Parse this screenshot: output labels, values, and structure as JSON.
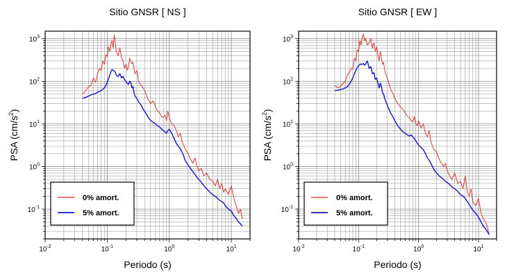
{
  "chart_data": [
    {
      "type": "line",
      "title": "Sitio GNSR [ NS ]",
      "xlabel": "Periodo (s)",
      "ylabel": "PSA (cm/s",
      "ylabel_sup": "2",
      "ylabel_close": ")",
      "xscale": "log",
      "yscale": "log",
      "xlim": [
        0.01,
        20
      ],
      "ylim": [
        0.02,
        1500
      ],
      "grid": true,
      "legend_position": "bottom-left",
      "x_ticks": [
        {
          "value": 0.01,
          "base": "10",
          "exp": "-2"
        },
        {
          "value": 0.1,
          "base": "10",
          "exp": "-1"
        },
        {
          "value": 1,
          "base": "10",
          "exp": "0"
        },
        {
          "value": 10,
          "base": "10",
          "exp": "1"
        }
      ],
      "y_ticks": [
        {
          "value": 0.1,
          "base": "10",
          "exp": "-1"
        },
        {
          "value": 1,
          "base": "10",
          "exp": "0"
        },
        {
          "value": 10,
          "base": "10",
          "exp": "1"
        },
        {
          "value": 100,
          "base": "10",
          "exp": "2"
        },
        {
          "value": 1000,
          "base": "10",
          "exp": "3"
        }
      ],
      "series": [
        {
          "name": "0% amort.",
          "color": "#ee2222",
          "x": [
            0.04,
            0.045,
            0.05,
            0.055,
            0.06,
            0.065,
            0.07,
            0.075,
            0.08,
            0.085,
            0.09,
            0.095,
            0.1,
            0.105,
            0.11,
            0.115,
            0.12,
            0.125,
            0.13,
            0.135,
            0.14,
            0.15,
            0.16,
            0.17,
            0.18,
            0.19,
            0.2,
            0.21,
            0.22,
            0.23,
            0.24,
            0.25,
            0.26,
            0.27,
            0.28,
            0.3,
            0.32,
            0.35,
            0.38,
            0.4,
            0.45,
            0.5,
            0.55,
            0.6,
            0.65,
            0.7,
            0.75,
            0.8,
            0.85,
            0.9,
            0.95,
            1.0,
            1.1,
            1.2,
            1.3,
            1.4,
            1.5,
            1.6,
            1.7,
            1.8,
            2.0,
            2.2,
            2.4,
            2.6,
            2.8,
            3.0,
            3.3,
            3.6,
            4.0,
            4.5,
            5.0,
            5.5,
            6.0,
            6.5,
            7.0,
            7.5,
            8.0,
            9.0,
            10.0,
            11.0,
            12.0,
            13.0,
            14.0,
            15.0
          ],
          "values": [
            50,
            60,
            75,
            80,
            120,
            95,
            150,
            200,
            180,
            300,
            250,
            420,
            380,
            650,
            500,
            750,
            900,
            600,
            1200,
            800,
            500,
            400,
            600,
            350,
            300,
            200,
            250,
            180,
            220,
            350,
            300,
            260,
            280,
            200,
            150,
            180,
            100,
            80,
            70,
            60,
            40,
            30,
            35,
            25,
            20,
            18,
            15,
            14,
            16,
            12,
            20,
            14,
            10,
            9,
            7,
            5,
            6,
            4,
            3.2,
            2.6,
            2.0,
            1.5,
            1.2,
            1.6,
            1.0,
            0.8,
            0.9,
            0.6,
            0.7,
            0.5,
            0.45,
            0.35,
            0.5,
            0.3,
            0.4,
            0.25,
            0.3,
            0.22,
            0.35,
            0.18,
            0.12,
            0.08,
            0.1,
            0.06
          ]
        },
        {
          "name": "5% amort.",
          "color": "#1111dd",
          "x": [
            0.04,
            0.045,
            0.05,
            0.055,
            0.06,
            0.065,
            0.07,
            0.075,
            0.08,
            0.085,
            0.09,
            0.095,
            0.1,
            0.105,
            0.11,
            0.115,
            0.12,
            0.125,
            0.13,
            0.135,
            0.14,
            0.15,
            0.16,
            0.17,
            0.18,
            0.19,
            0.2,
            0.21,
            0.22,
            0.23,
            0.24,
            0.25,
            0.26,
            0.27,
            0.28,
            0.3,
            0.32,
            0.35,
            0.38,
            0.4,
            0.45,
            0.5,
            0.55,
            0.6,
            0.65,
            0.7,
            0.75,
            0.8,
            0.85,
            0.9,
            0.95,
            1.0,
            1.1,
            1.2,
            1.3,
            1.4,
            1.5,
            1.6,
            1.7,
            1.8,
            2.0,
            2.2,
            2.4,
            2.6,
            2.8,
            3.0,
            3.3,
            3.6,
            4.0,
            4.5,
            5.0,
            5.5,
            6.0,
            6.5,
            7.0,
            7.5,
            8.0,
            9.0,
            10.0,
            11.0,
            12.0,
            13.0,
            14.0,
            15.0
          ],
          "values": [
            40,
            42,
            45,
            48,
            50,
            52,
            55,
            58,
            60,
            65,
            70,
            80,
            95,
            115,
            140,
            170,
            190,
            180,
            175,
            165,
            140,
            130,
            150,
            120,
            130,
            110,
            100,
            90,
            85,
            100,
            95,
            70,
            75,
            55,
            45,
            40,
            33,
            28,
            22,
            20,
            15,
            12,
            11,
            10,
            9,
            8.5,
            7.5,
            7,
            6.5,
            6,
            7,
            7.5,
            6,
            4.5,
            3.5,
            3,
            2.6,
            2.2,
            1.8,
            1.4,
            1.1,
            0.9,
            0.75,
            0.65,
            0.55,
            0.5,
            0.42,
            0.36,
            0.3,
            0.25,
            0.22,
            0.2,
            0.18,
            0.16,
            0.15,
            0.14,
            0.12,
            0.1,
            0.09,
            0.07,
            0.06,
            0.05,
            0.045,
            0.04
          ]
        }
      ]
    },
    {
      "type": "line",
      "title": "Sitio GNSR [ EW ]",
      "xlabel": "Periodo (s)",
      "ylabel": "PSA (cm/s",
      "ylabel_sup": "2",
      "ylabel_close": ")",
      "xscale": "log",
      "yscale": "log",
      "xlim": [
        0.01,
        20
      ],
      "ylim": [
        0.02,
        1500
      ],
      "grid": true,
      "legend_position": "bottom-left",
      "x_ticks": [
        {
          "value": 0.01,
          "base": "10",
          "exp": "-2"
        },
        {
          "value": 0.1,
          "base": "10",
          "exp": "-1"
        },
        {
          "value": 1,
          "base": "10",
          "exp": "0"
        },
        {
          "value": 10,
          "base": "10",
          "exp": "1"
        }
      ],
      "y_ticks": [
        {
          "value": 0.1,
          "base": "10",
          "exp": "-1"
        },
        {
          "value": 1,
          "base": "10",
          "exp": "0"
        },
        {
          "value": 10,
          "base": "10",
          "exp": "1"
        },
        {
          "value": 100,
          "base": "10",
          "exp": "2"
        },
        {
          "value": 1000,
          "base": "10",
          "exp": "3"
        }
      ],
      "series": [
        {
          "name": "0% amort.",
          "color": "#ee2222",
          "x": [
            0.04,
            0.045,
            0.05,
            0.055,
            0.06,
            0.065,
            0.07,
            0.075,
            0.08,
            0.085,
            0.09,
            0.095,
            0.1,
            0.105,
            0.11,
            0.115,
            0.12,
            0.125,
            0.13,
            0.135,
            0.14,
            0.15,
            0.16,
            0.17,
            0.18,
            0.19,
            0.2,
            0.21,
            0.22,
            0.23,
            0.24,
            0.25,
            0.26,
            0.27,
            0.28,
            0.3,
            0.32,
            0.35,
            0.38,
            0.4,
            0.45,
            0.5,
            0.55,
            0.6,
            0.65,
            0.7,
            0.75,
            0.8,
            0.85,
            0.9,
            0.95,
            1.0,
            1.1,
            1.2,
            1.3,
            1.4,
            1.5,
            1.6,
            1.7,
            1.8,
            2.0,
            2.2,
            2.4,
            2.6,
            2.8,
            3.0,
            3.3,
            3.6,
            4.0,
            4.5,
            5.0,
            5.5,
            6.0,
            6.5,
            7.0,
            7.5,
            8.0,
            9.0,
            10.0,
            11.0,
            12.0,
            13.0,
            14.0,
            15.0
          ],
          "values": [
            80,
            70,
            75,
            90,
            100,
            140,
            160,
            200,
            190,
            350,
            300,
            550,
            500,
            900,
            700,
            1100,
            1300,
            900,
            1000,
            850,
            700,
            800,
            1000,
            600,
            800,
            500,
            650,
            400,
            300,
            500,
            350,
            250,
            280,
            200,
            150,
            120,
            90,
            60,
            50,
            40,
            30,
            25,
            22,
            18,
            15,
            14,
            12,
            11,
            15,
            10,
            9,
            12,
            8,
            10,
            6,
            5,
            7,
            4,
            3,
            2.5,
            2.2,
            1.5,
            1.2,
            1.0,
            1.2,
            0.8,
            0.6,
            0.5,
            0.7,
            0.4,
            0.45,
            0.3,
            0.6,
            0.25,
            0.2,
            0.3,
            0.15,
            0.12,
            0.18,
            0.08,
            0.06,
            0.05,
            0.04,
            0.025
          ]
        },
        {
          "name": "5% amort.",
          "color": "#1111dd",
          "x": [
            0.04,
            0.045,
            0.05,
            0.055,
            0.06,
            0.065,
            0.07,
            0.075,
            0.08,
            0.085,
            0.09,
            0.095,
            0.1,
            0.105,
            0.11,
            0.115,
            0.12,
            0.125,
            0.13,
            0.135,
            0.14,
            0.15,
            0.16,
            0.17,
            0.18,
            0.19,
            0.2,
            0.21,
            0.22,
            0.23,
            0.24,
            0.25,
            0.26,
            0.27,
            0.28,
            0.3,
            0.32,
            0.35,
            0.38,
            0.4,
            0.45,
            0.5,
            0.55,
            0.6,
            0.65,
            0.7,
            0.75,
            0.8,
            0.85,
            0.9,
            0.95,
            1.0,
            1.1,
            1.2,
            1.3,
            1.4,
            1.5,
            1.6,
            1.7,
            1.8,
            2.0,
            2.2,
            2.4,
            2.6,
            2.8,
            3.0,
            3.3,
            3.6,
            4.0,
            4.5,
            5.0,
            5.5,
            6.0,
            6.5,
            7.0,
            7.5,
            8.0,
            9.0,
            10.0,
            11.0,
            12.0,
            13.0,
            14.0,
            15.0
          ],
          "values": [
            60,
            62,
            64,
            66,
            70,
            75,
            85,
            100,
            120,
            150,
            180,
            210,
            230,
            250,
            255,
            250,
            260,
            240,
            250,
            280,
            300,
            200,
            220,
            150,
            160,
            110,
            120,
            90,
            70,
            90,
            75,
            55,
            50,
            42,
            35,
            28,
            22,
            17,
            14,
            12,
            9,
            7.5,
            6.5,
            6,
            5.5,
            5.2,
            5.5,
            5,
            4.5,
            4,
            3.5,
            3.2,
            2.8,
            2.5,
            2,
            1.6,
            1.4,
            1.2,
            1.0,
            0.85,
            0.7,
            0.6,
            0.55,
            0.5,
            0.45,
            0.42,
            0.38,
            0.33,
            0.3,
            0.26,
            0.22,
            0.2,
            0.18,
            0.15,
            0.13,
            0.11,
            0.095,
            0.08,
            0.065,
            0.05,
            0.04,
            0.035,
            0.03,
            0.025
          ]
        }
      ]
    }
  ]
}
